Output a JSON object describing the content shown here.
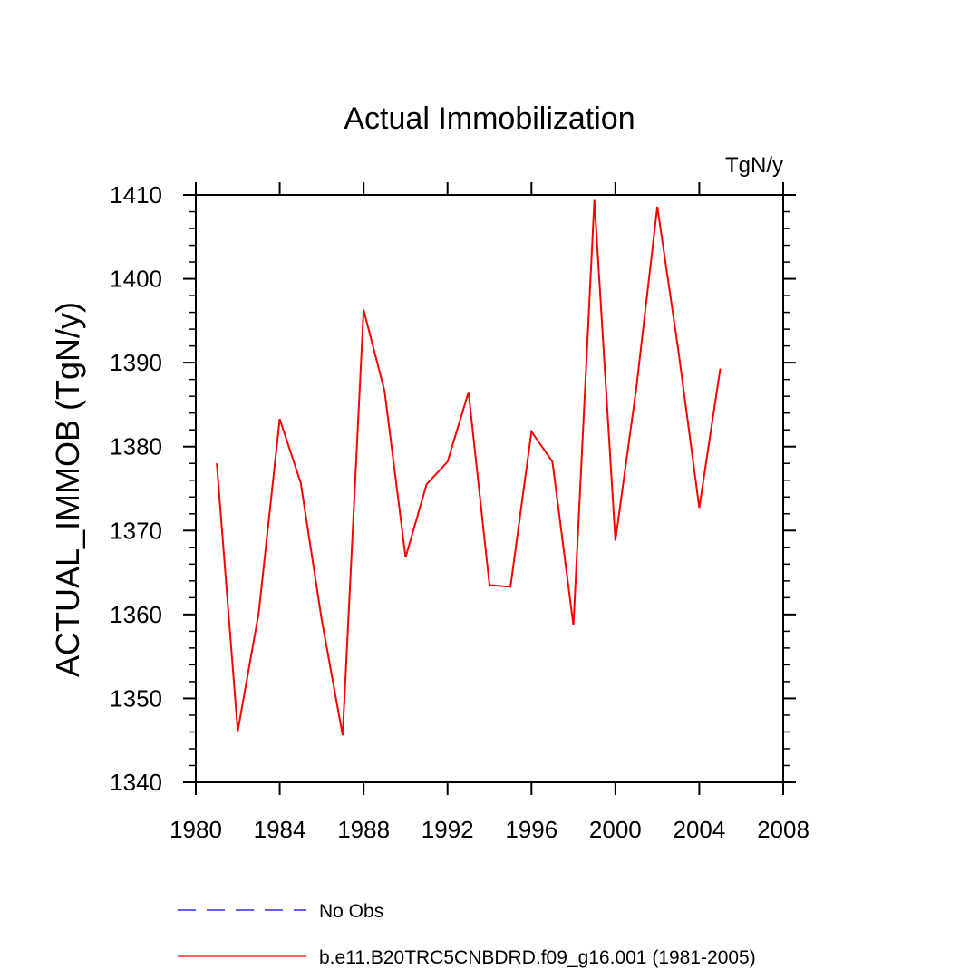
{
  "chart_data": {
    "type": "line",
    "title": "Actual Immobilization",
    "units_label": "TgN/y",
    "xlabel": "",
    "ylabel": "ACTUAL_IMMOB  (TgN/y)",
    "xlim": [
      1980,
      2008
    ],
    "ylim": [
      1340,
      1410
    ],
    "x_ticks": [
      1980,
      1984,
      1988,
      1992,
      1996,
      2000,
      2004,
      2008
    ],
    "y_ticks": [
      1340,
      1350,
      1360,
      1370,
      1380,
      1390,
      1400,
      1410
    ],
    "x_tick_labels": [
      "1980",
      "1984",
      "1988",
      "1992",
      "1996",
      "2000",
      "2004",
      "2008"
    ],
    "y_tick_labels": [
      "1340",
      "1350",
      "1360",
      "1370",
      "1380",
      "1390",
      "1400",
      "1410"
    ],
    "series": [
      {
        "name": "No Obs",
        "color": "#0000ff",
        "style": "dashed",
        "x": [],
        "values": []
      },
      {
        "name": "b.e11.B20TRC5CNBDRD.f09_g16.001 (1981-2005)",
        "color": "#ff0000",
        "style": "solid",
        "x": [
          1981,
          1982,
          1983,
          1984,
          1985,
          1986,
          1987,
          1988,
          1989,
          1990,
          1991,
          1992,
          1993,
          1994,
          1995,
          1996,
          1997,
          1998,
          1999,
          2000,
          2001,
          2002,
          2003,
          2004,
          2005
        ],
        "values": [
          1378.0,
          1346.1,
          1360.2,
          1383.3,
          1375.7,
          1359.4,
          1345.6,
          1396.3,
          1386.6,
          1366.8,
          1375.5,
          1378.2,
          1386.5,
          1363.5,
          1363.3,
          1381.8,
          1378.2,
          1358.7,
          1409.4,
          1368.8,
          1387.0,
          1408.6,
          1391.5,
          1372.7,
          1389.3
        ]
      }
    ],
    "legend_position": "bottom"
  }
}
